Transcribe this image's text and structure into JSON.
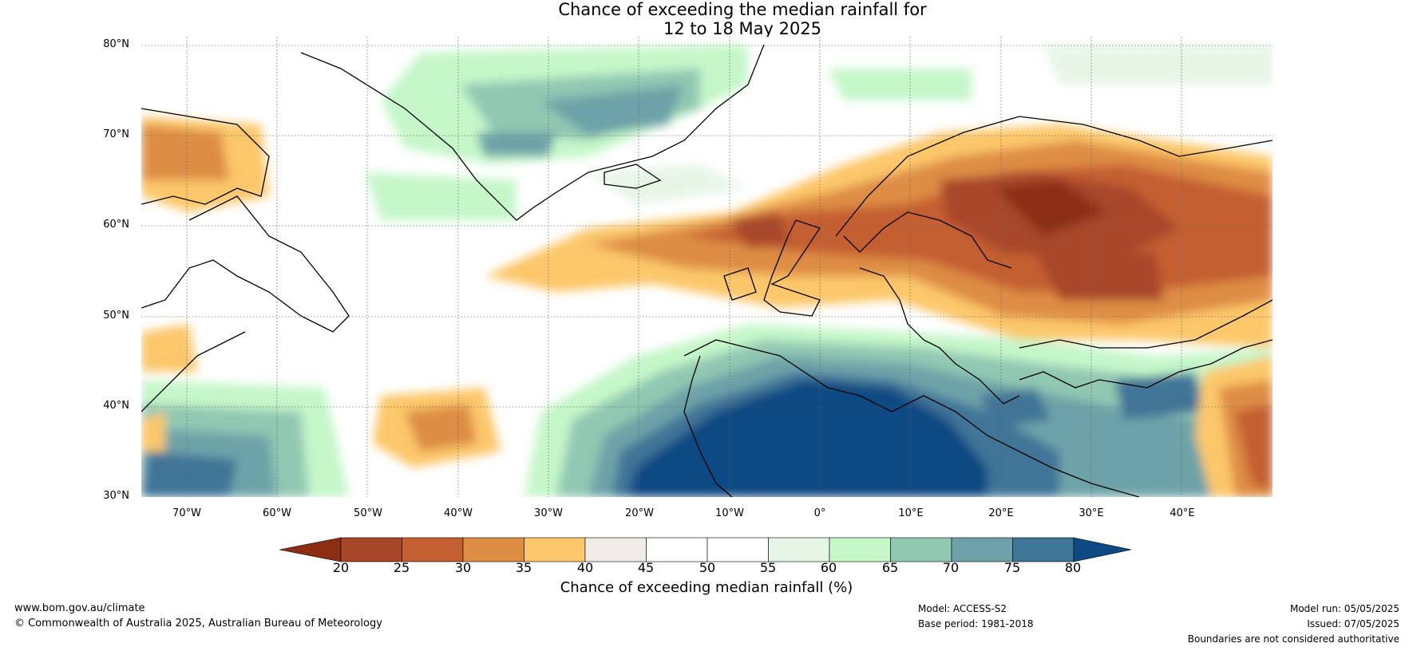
{
  "title": {
    "line1": "Chance of exceeding the median rainfall for",
    "line2": "12 to 18 May 2025"
  },
  "map": {
    "lat_labels": [
      "80°N",
      "70°N",
      "60°N",
      "50°N",
      "40°N",
      "30°N"
    ],
    "lon_labels": [
      "70°W",
      "60°W",
      "50°W",
      "40°W",
      "30°W",
      "20°W",
      "10°W",
      "0°",
      "10°E",
      "20°E",
      "30°E",
      "40°E"
    ],
    "extent": {
      "lon_min": -75,
      "lon_max": 50,
      "lat_min": 30,
      "lat_max": 81
    }
  },
  "colorbar": {
    "title": "Chance of exceeding median rainfall (%)",
    "ticks": [
      "20",
      "25",
      "30",
      "35",
      "40",
      "45",
      "50",
      "55",
      "60",
      "65",
      "70",
      "75",
      "80"
    ],
    "low_color": "#8c2d14",
    "high_color": "#0b4a82",
    "colors": [
      "#a8462a",
      "#c45f32",
      "#de8d45",
      "#fcc76a",
      "#f0ece7",
      "#ffffff",
      "#ffffff",
      "#e7f5e7",
      "#c5f7c9",
      "#91c8b2",
      "#6da3a8",
      "#3f7597"
    ]
  },
  "footer": {
    "url": "www.bom.gov.au/climate",
    "copyright": "© Commonwealth of Australia 2025, Australian Bureau of Meteorology",
    "model": "Model: ACCESS-S2",
    "base_period": "Base period: 1981-2018",
    "model_run": "Model run: 05/05/2025",
    "issued": "Issued: 07/05/2025",
    "disclaimer": "Boundaries are not considered authoritative"
  }
}
